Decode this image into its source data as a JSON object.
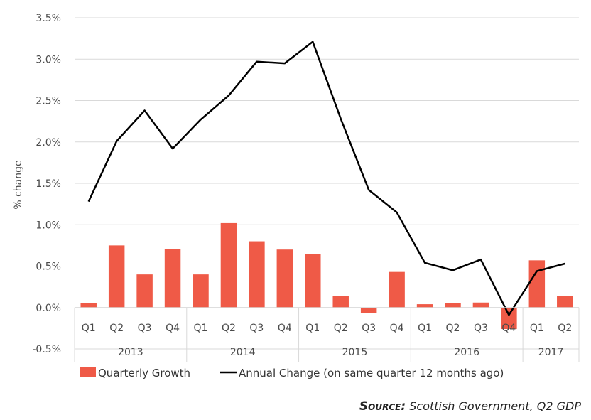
{
  "chart_data": {
    "type": "bar+line",
    "ylabel": "% change",
    "ylim": [
      -0.5,
      3.5
    ],
    "yticks": [
      "-0.5%",
      "0.0%",
      "0.5%",
      "1.0%",
      "1.5%",
      "2.0%",
      "2.5%",
      "3.0%",
      "3.5%"
    ],
    "yticks_values": [
      -0.5,
      0,
      0.5,
      1.0,
      1.5,
      2.0,
      2.5,
      3.0,
      3.5
    ],
    "categories": [
      "Q1",
      "Q2",
      "Q3",
      "Q4",
      "Q1",
      "Q2",
      "Q3",
      "Q4",
      "Q1",
      "Q2",
      "Q3",
      "Q4",
      "Q1",
      "Q2",
      "Q3",
      "Q4",
      "Q1",
      "Q2"
    ],
    "years": [
      {
        "label": "2013",
        "count": 4
      },
      {
        "label": "2014",
        "count": 4
      },
      {
        "label": "2015",
        "count": 4
      },
      {
        "label": "2016",
        "count": 4
      },
      {
        "label": "2017",
        "count": 2
      }
    ],
    "series": [
      {
        "name": "Quarterly Growth",
        "kind": "bar",
        "color": "#ef5a47",
        "values": [
          0.05,
          0.75,
          0.4,
          0.71,
          0.4,
          1.02,
          0.8,
          0.7,
          0.65,
          0.14,
          -0.07,
          0.43,
          0.04,
          0.05,
          0.06,
          -0.26,
          0.57,
          0.14
        ]
      },
      {
        "name": "Annual Change (on same quarter 12 months ago)",
        "kind": "line",
        "color": "#000000",
        "values": [
          1.28,
          2.01,
          2.38,
          1.92,
          2.27,
          2.56,
          2.97,
          2.95,
          3.21,
          2.28,
          1.42,
          1.15,
          0.54,
          0.45,
          0.58,
          -0.09,
          0.44,
          0.53
        ]
      }
    ],
    "grid": "horizontal",
    "legend_position": "bottom-left"
  },
  "source": {
    "label": "Source:",
    "text": "Scottish Government, Q2 GDP"
  }
}
